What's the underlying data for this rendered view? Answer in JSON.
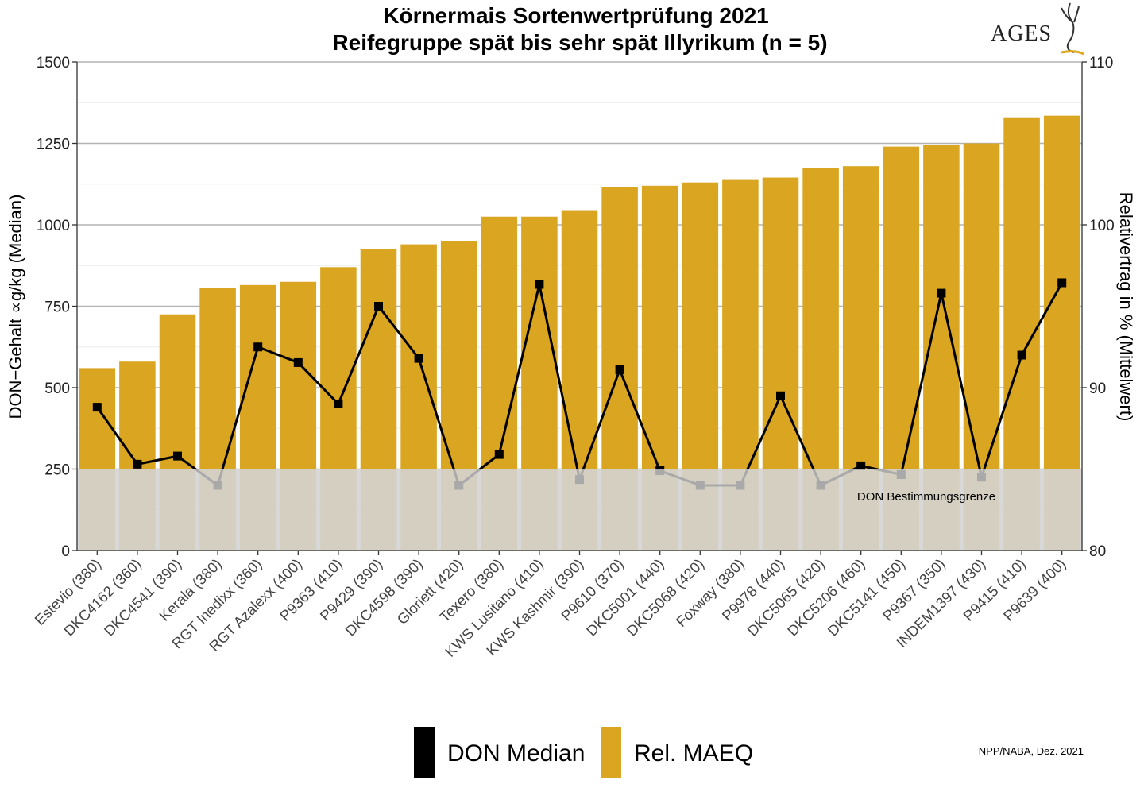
{
  "colors": {
    "bar": "#daa520",
    "line": "#000000",
    "marker": "#000000",
    "zone": "#b2b2b2",
    "grid_major": "#b3b3b3",
    "grid_minor": "#ebebeb",
    "logo_accent": "#e0a91b"
  },
  "logo": {
    "text": "AGES"
  },
  "footer": {
    "credit": "NPP/NABA, Dez. 2021"
  },
  "chart_data": {
    "type": "bar",
    "title": "Körnermais Sortenwertprüfung 2021",
    "subtitle": "Reifegruppe spät bis sehr spät Illyrikum (n = 5)",
    "ylabel": "DON−Gehalt ∝g/kg (Median)",
    "y2label": "Relativertrag in % (Mittelwert)",
    "ylim": [
      0,
      1500
    ],
    "y2lim": [
      80,
      110
    ],
    "yticks": [
      0,
      250,
      500,
      750,
      1000,
      1250,
      1500
    ],
    "y2ticks": [
      80,
      90,
      100,
      110
    ],
    "grid": true,
    "legend_position": "bottom",
    "categories": [
      "Estevio (380)",
      "DKC4162 (360)",
      "DKC4541 (390)",
      "Kerala (380)",
      "RGT Inedixx (360)",
      "RGT Azalexx (400)",
      "P9363 (410)",
      "P9429 (390)",
      "DKC4598 (390)",
      "Gloriett (420)",
      "Texero (380)",
      "KWS Lusitano (410)",
      "KWS Kashmir (390)",
      "P9610 (370)",
      "DKC5001 (440)",
      "DKC5068 (420)",
      "Foxway (380)",
      "P9978 (440)",
      "DKC5065 (420)",
      "DKC5206 (460)",
      "DKC5141 (450)",
      "P9367 (350)",
      "INDEM1397 (430)",
      "P9415 (410)",
      "P9639 (400)"
    ],
    "series": [
      {
        "name": "DON Median",
        "type": "line",
        "axis": "left",
        "values": [
          440,
          265,
          290,
          200,
          625,
          577,
          450,
          750,
          590,
          200,
          295,
          817,
          218,
          555,
          245,
          200,
          200,
          475,
          200,
          260,
          233,
          790,
          225,
          600,
          822
        ]
      },
      {
        "name": "Rel. MAEQ",
        "type": "bar",
        "axis": "right",
        "values": [
          91.2,
          91.6,
          94.5,
          96.1,
          96.3,
          96.5,
          97.4,
          98.5,
          98.8,
          99.0,
          100.5,
          100.5,
          100.9,
          102.3,
          102.4,
          102.6,
          102.8,
          102.9,
          103.5,
          103.6,
          104.8,
          104.9,
          105.0,
          106.6,
          106.7
        ]
      }
    ],
    "annotations": [
      {
        "text": "DON Bestimmungsgrenze",
        "y_from": 0,
        "y_to": 250
      }
    ]
  }
}
